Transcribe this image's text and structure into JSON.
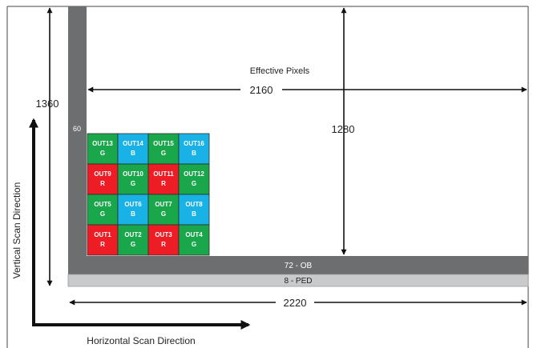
{
  "labels": {
    "effective_pixels": "Effective Pixels",
    "width_effective": "2160",
    "height_total": "1360",
    "height_effective": "1280",
    "ob_left": "60",
    "ob_bottom": "72 - OB",
    "ped": "8 - PED",
    "width_total": "2220",
    "vertical_scan": "Vertical Scan Direction",
    "horizontal_scan": "Horizontal Scan Direction"
  },
  "colors": {
    "G": "#1aa64a",
    "B": "#19b2e6",
    "R": "#ee1c24",
    "ob": "#6d6e70",
    "ped": "#c9cacc"
  },
  "grid": [
    [
      {
        "out": "OUT13",
        "ch": "G"
      },
      {
        "out": "OUT14",
        "ch": "B"
      },
      {
        "out": "OUT15",
        "ch": "G"
      },
      {
        "out": "OUT16",
        "ch": "B"
      }
    ],
    [
      {
        "out": "OUT9",
        "ch": "R"
      },
      {
        "out": "OUT10",
        "ch": "G"
      },
      {
        "out": "OUT11",
        "ch": "R"
      },
      {
        "out": "OUT12",
        "ch": "G"
      }
    ],
    [
      {
        "out": "OUT5",
        "ch": "G"
      },
      {
        "out": "OUT6",
        "ch": "B"
      },
      {
        "out": "OUT7",
        "ch": "G"
      },
      {
        "out": "OUT8",
        "ch": "B"
      }
    ],
    [
      {
        "out": "OUT1",
        "ch": "R"
      },
      {
        "out": "OUT2",
        "ch": "G"
      },
      {
        "out": "OUT3",
        "ch": "R"
      },
      {
        "out": "OUT4",
        "ch": "G"
      }
    ]
  ]
}
